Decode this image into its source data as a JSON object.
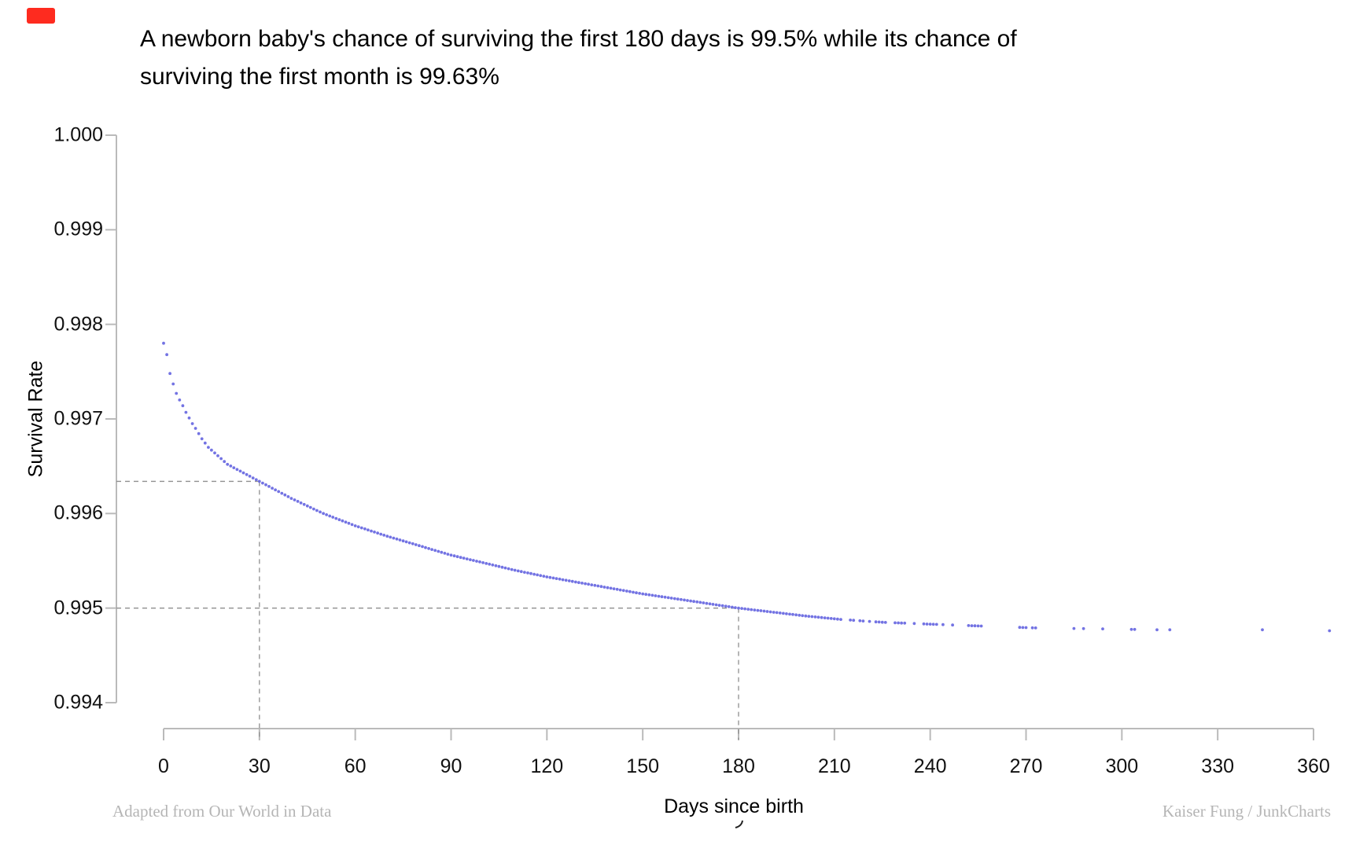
{
  "marker": {
    "color": "#fe2b1f"
  },
  "title": {
    "line1": "A newborn baby's chance of surviving the first 180 days is 99.5% while its chance of",
    "line2": "surviving the first month is 99.63%"
  },
  "chart_data": {
    "type": "scatter",
    "title": "A newborn baby's chance of surviving the first 180 days is 99.5% while its chance of surviving the first month is 99.63%",
    "xlabel": "Days since birth",
    "ylabel": "Survival Rate",
    "xlim": [
      0,
      365
    ],
    "ylim": [
      0.994,
      1.0
    ],
    "x_tick_labels": [
      "0",
      "30",
      "60",
      "90",
      "120",
      "150",
      "180",
      "210",
      "240",
      "270",
      "300",
      "330",
      "360"
    ],
    "x_tick_step_days": 30,
    "y_tick_labels": [
      "1.000",
      "0.999",
      "0.998",
      "0.997",
      "0.996",
      "0.995",
      "0.994"
    ],
    "y_tick_step": 0.001,
    "grid": "off",
    "legend": "none",
    "dot_color": "#6b6ce1",
    "axis_color": "#bababa",
    "dashed_color": "#8f8f8f",
    "reference_lines": [
      {
        "day": 30,
        "value": 0.99634,
        "meaning": "first month survival 99.63%"
      },
      {
        "day": 180,
        "value": 0.995,
        "meaning": "first 180 days survival 99.5%"
      }
    ],
    "curve_anchors": [
      [
        0,
        0.9978
      ],
      [
        1,
        0.99768
      ],
      [
        2,
        0.99748
      ],
      [
        3,
        0.99737
      ],
      [
        4,
        0.99727
      ],
      [
        5,
        0.9972
      ],
      [
        6,
        0.99714
      ],
      [
        7,
        0.99707
      ],
      [
        8,
        0.99701
      ],
      [
        9,
        0.99695
      ],
      [
        10,
        0.9969
      ],
      [
        12,
        0.99679
      ],
      [
        14,
        0.9967
      ],
      [
        17,
        0.99661
      ],
      [
        20,
        0.99652
      ],
      [
        25,
        0.99643
      ],
      [
        30,
        0.99634
      ],
      [
        35,
        0.99625
      ],
      [
        40,
        0.99616
      ],
      [
        45,
        0.99608
      ],
      [
        50,
        0.996
      ],
      [
        60,
        0.99587
      ],
      [
        70,
        0.99576
      ],
      [
        80,
        0.99566
      ],
      [
        90,
        0.99556
      ],
      [
        100,
        0.99548
      ],
      [
        110,
        0.9954
      ],
      [
        120,
        0.99533
      ],
      [
        130,
        0.99527
      ],
      [
        140,
        0.99521
      ],
      [
        150,
        0.99515
      ],
      [
        160,
        0.9951
      ],
      [
        170,
        0.99505
      ],
      [
        180,
        0.995
      ],
      [
        190,
        0.99496
      ],
      [
        200,
        0.99492
      ],
      [
        212,
        0.99488
      ],
      [
        225,
        0.99485
      ],
      [
        240,
        0.99483
      ],
      [
        256,
        0.99481
      ],
      [
        273,
        0.99479
      ],
      [
        294,
        0.99478
      ],
      [
        311,
        0.99477
      ],
      [
        344,
        0.99477
      ],
      [
        365,
        0.99476
      ]
    ],
    "sampling": {
      "daily_through": 212,
      "sparse_days": [
        215,
        216,
        218,
        219,
        221,
        223,
        224,
        225,
        226,
        229,
        230,
        231,
        232,
        235,
        238,
        239,
        240,
        241,
        242,
        244,
        247,
        252,
        253,
        254,
        255,
        256,
        268,
        269,
        270,
        272,
        273,
        285,
        288,
        294,
        303,
        304,
        311,
        315,
        344,
        365
      ]
    }
  },
  "footer": {
    "left": "Adapted from Our World in Data",
    "right": "Kaiser Fung / JunkCharts"
  }
}
